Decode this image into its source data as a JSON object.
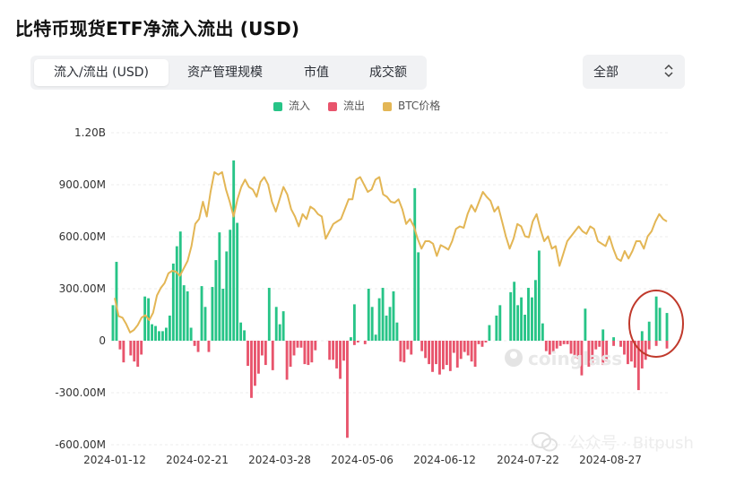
{
  "page_title": "比特币现货ETF净流入流出 (USD)",
  "tabs": [
    {
      "label": "流入/流出 (USD)",
      "active": true
    },
    {
      "label": "资产管理规模",
      "active": false
    },
    {
      "label": "市值",
      "active": false
    },
    {
      "label": "成交额",
      "active": false
    }
  ],
  "range_select": {
    "value": "全部"
  },
  "watermark": {
    "brand": "coinglass",
    "wechat_text": "公众号 · Bitpush"
  },
  "colors": {
    "inflow": "#27c487",
    "outflow": "#e8546c",
    "btc": "#e3b655",
    "annotation_circle": "#c0392b"
  },
  "chart_data": {
    "type": "bar",
    "ylim": [
      -600000000,
      1200000000
    ],
    "y_ticks": [
      {
        "value": 1200000000,
        "label": "1.20B"
      },
      {
        "value": 900000000,
        "label": "900.00M"
      },
      {
        "value": 600000000,
        "label": "600.00M"
      },
      {
        "value": 300000000,
        "label": "300.00M"
      },
      {
        "value": 0,
        "label": "0"
      },
      {
        "value": -300000000,
        "label": "-300.00M"
      },
      {
        "value": -600000000,
        "label": "-600.00M"
      }
    ],
    "x_ticks": [
      "2024-01-12",
      "2024-02-21",
      "2024-03-28",
      "2024-05-06",
      "2024-06-12",
      "2024-07-22",
      "2024-08-27"
    ],
    "grid": true,
    "legend": [
      {
        "name": "流入",
        "color": "#27c487"
      },
      {
        "name": "流出",
        "color": "#e8546c"
      },
      {
        "name": "BTC价格",
        "color": "#e3b655"
      }
    ],
    "series": [
      {
        "name": "流入",
        "values": [
          205,
          455,
          0,
          0,
          0,
          0,
          0,
          0,
          0,
          255,
          245,
          95,
          85,
          55,
          55,
          75,
          145,
          445,
          545,
          630,
          320,
          285,
          75,
          0,
          0,
          315,
          195,
          0,
          310,
          465,
          625,
          300,
          515,
          640,
          1040,
          680,
          105,
          60,
          0,
          0,
          0,
          0,
          0,
          0,
          305,
          0,
          195,
          95,
          170,
          0,
          0,
          0,
          0,
          0,
          0,
          0,
          0,
          0,
          0,
          0,
          0,
          0,
          0,
          0,
          0,
          0,
          0,
          20,
          210,
          0,
          0,
          0,
          300,
          195,
          35,
          245,
          305,
          145,
          195,
          285,
          105,
          0,
          0,
          0,
          0,
          880,
          510,
          0,
          0,
          0,
          0,
          0,
          0,
          0,
          0,
          0,
          0,
          0,
          0,
          0,
          0,
          0,
          0,
          0,
          0,
          0,
          90,
          0,
          145,
          205,
          0,
          0,
          280,
          340,
          205,
          250,
          150,
          305,
          250,
          350,
          520,
          100,
          0,
          0,
          0,
          0,
          0,
          0,
          0,
          0,
          0,
          0,
          0,
          185,
          0,
          0,
          0,
          0,
          65,
          0,
          0,
          20,
          0,
          0,
          0,
          0,
          0,
          0,
          0,
          55,
          0,
          110,
          0,
          255,
          190,
          0,
          160
        ]
      },
      {
        "name": "流出",
        "values": [
          0,
          0,
          -50,
          -125,
          0,
          -85,
          -120,
          -150,
          -80,
          0,
          0,
          0,
          0,
          0,
          0,
          0,
          0,
          0,
          0,
          0,
          0,
          0,
          0,
          -30,
          -65,
          0,
          0,
          -65,
          0,
          0,
          0,
          0,
          0,
          0,
          0,
          0,
          0,
          0,
          -145,
          -330,
          -260,
          -190,
          -85,
          -140,
          0,
          -170,
          0,
          0,
          0,
          -225,
          -150,
          -85,
          -40,
          -40,
          -135,
          -140,
          -125,
          -55,
          0,
          0,
          0,
          -110,
          -110,
          -160,
          -220,
          -115,
          -560,
          0,
          -25,
          -10,
          0,
          -20,
          0,
          0,
          0,
          0,
          0,
          0,
          0,
          0,
          0,
          -120,
          -125,
          -50,
          -80,
          0,
          0,
          -60,
          -100,
          -135,
          -180,
          -135,
          -195,
          -165,
          -140,
          -175,
          -70,
          -155,
          -105,
          -65,
          -85,
          -120,
          -150,
          -20,
          -35,
          -10,
          0,
          0,
          0,
          0,
          0,
          0,
          0,
          0,
          0,
          0,
          0,
          0,
          0,
          0,
          0,
          0,
          -60,
          -80,
          -65,
          -45,
          -30,
          -20,
          -20,
          -75,
          -100,
          -105,
          -200,
          0,
          -150,
          -140,
          -50,
          -35,
          -140,
          -120,
          0,
          -30,
          0,
          -35,
          -80,
          -135,
          -120,
          -155,
          -285,
          -160,
          -110,
          -50,
          0,
          -30,
          0,
          0,
          -45,
          0
        ]
      }
    ],
    "btc_price_series": {
      "name": "BTC价格",
      "values_usd": [
        46500,
        42800,
        42500,
        41200,
        39500,
        40000,
        41000,
        42500,
        43000,
        42000,
        43500,
        47000,
        48500,
        49500,
        51500,
        52000,
        51800,
        51000,
        52500,
        54000,
        57000,
        61500,
        62500,
        66000,
        63000,
        68000,
        72000,
        71500,
        72000,
        68500,
        66000,
        63000,
        66500,
        69000,
        70500,
        69000,
        68500,
        67000,
        70000,
        71000,
        69500,
        66000,
        64000,
        66500,
        69000,
        67500,
        64500,
        63000,
        61000,
        63500,
        62500,
        65000,
        64500,
        63500,
        63000,
        58500,
        60000,
        61500,
        62000,
        62500,
        64500,
        66500,
        66500,
        70500,
        71000,
        69500,
        68000,
        68500,
        70500,
        71000,
        67500,
        67000,
        66000,
        65800,
        66500,
        64500,
        61500,
        62500,
        61000,
        58500,
        56500,
        58000,
        58000,
        57500,
        55000,
        57200,
        56800,
        56300,
        58000,
        60500,
        61000,
        60700,
        63500,
        65300,
        64000,
        66000,
        68000,
        67000,
        66200,
        64000,
        65000,
        62000,
        59000,
        56500,
        58500,
        61500,
        61000,
        59000,
        58800,
        62000,
        63500,
        60500,
        58000,
        59000,
        56500,
        57000,
        53000,
        55500,
        58000,
        59000,
        60000,
        61000,
        60000,
        59500,
        61000,
        60500,
        58000,
        57500,
        57000,
        59000,
        56500,
        54500,
        54000,
        56000,
        54500,
        56000,
        58000,
        58000,
        56500,
        59000,
        60000,
        62000,
        63500,
        62500,
        62000
      ]
    }
  }
}
